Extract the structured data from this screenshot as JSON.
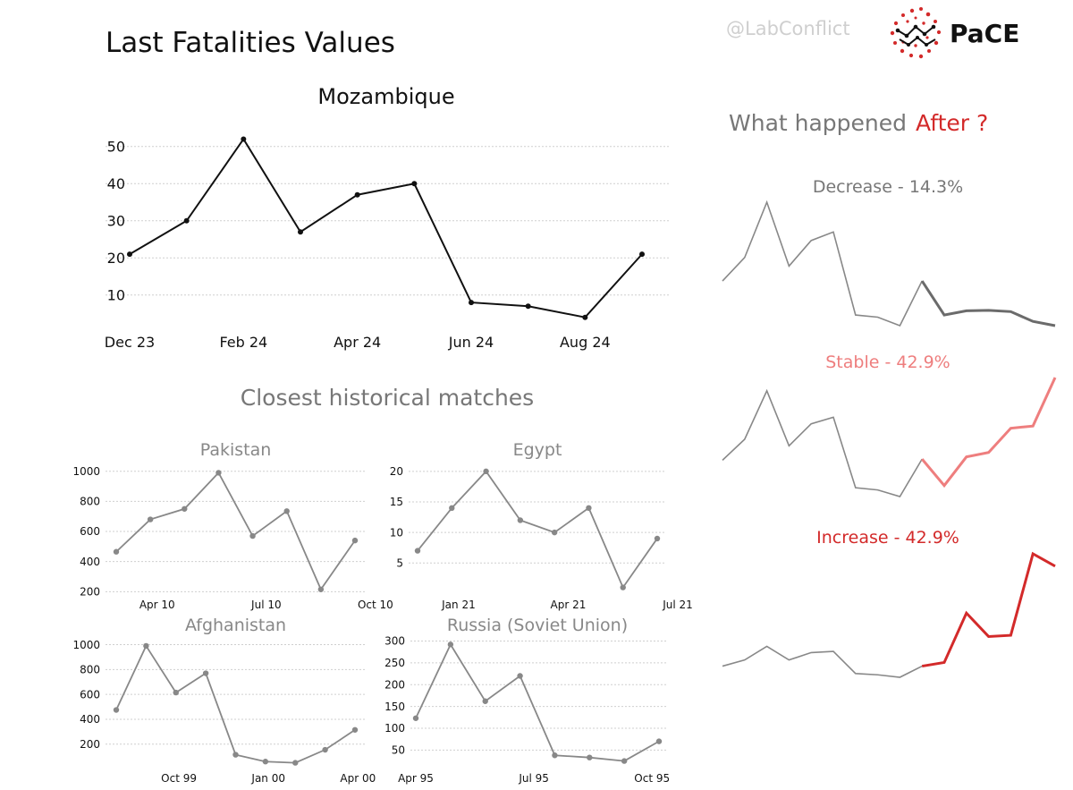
{
  "header": {
    "title": "Last Fatalities Values",
    "handle": "@LabConflict",
    "logo_text": "PaCE"
  },
  "after": {
    "title_prefix": "What happened",
    "title_highlight": "After ?"
  },
  "matches": {
    "title": "Closest historical matches"
  },
  "colors": {
    "accent_red": "#d32a2a",
    "light_red": "#ee7e7e",
    "grey": "#888888",
    "dark": "#111111"
  },
  "chart_data": [
    {
      "id": "main",
      "type": "line",
      "title": "Mozambique",
      "ylim": [
        2,
        55
      ],
      "yticks": [
        10,
        20,
        30,
        40,
        50
      ],
      "xticks": [
        {
          "x": 0,
          "label": "Dec 23"
        },
        {
          "x": 2,
          "label": "Feb 24"
        },
        {
          "x": 4,
          "label": "Apr 24"
        },
        {
          "x": 6,
          "label": "Jun 24"
        },
        {
          "x": 8,
          "label": "Aug 24"
        }
      ],
      "x": [
        0,
        1,
        2,
        3,
        4,
        5,
        6,
        7,
        8,
        9
      ],
      "values": [
        21,
        30,
        52,
        27,
        37,
        40,
        8,
        7,
        4,
        21
      ]
    },
    {
      "id": "pakistan",
      "type": "line",
      "title": "Pakistan",
      "ylim": [
        190,
        1040
      ],
      "yticks": [
        200,
        400,
        600,
        800,
        1000
      ],
      "xticks": [
        {
          "x": 1.2,
          "label": "Apr 10"
        },
        {
          "x": 4.4,
          "label": "Jul 10"
        },
        {
          "x": 7.6,
          "label": "Oct 10"
        }
      ],
      "x": [
        0,
        1,
        2,
        3,
        4,
        5,
        6,
        7
      ],
      "values": [
        465,
        680,
        750,
        990,
        570,
        735,
        215,
        540
      ]
    },
    {
      "id": "egypt",
      "type": "line",
      "title": "Egypt",
      "ylim": [
        0.5,
        21
      ],
      "yticks": [
        5,
        10,
        15,
        20
      ],
      "xticks": [
        {
          "x": 1.2,
          "label": "Jan 21"
        },
        {
          "x": 4.4,
          "label": "Apr 21"
        },
        {
          "x": 7.6,
          "label": "Jul 21"
        }
      ],
      "x": [
        0,
        1,
        2,
        3,
        4,
        5,
        6,
        7
      ],
      "values": [
        7,
        14,
        20,
        12,
        10,
        14,
        1,
        9
      ]
    },
    {
      "id": "afghanistan",
      "type": "line",
      "title": "Afghanistan",
      "ylim": [
        40,
        1040
      ],
      "yticks": [
        200,
        400,
        600,
        800,
        1000
      ],
      "xticks": [
        {
          "x": 2.1,
          "label": "Oct 99"
        },
        {
          "x": 5.1,
          "label": "Jan 00"
        },
        {
          "x": 8.1,
          "label": "Apr 00"
        }
      ],
      "x": [
        0,
        1,
        2,
        3,
        4,
        5,
        6,
        7,
        8
      ],
      "values": [
        475,
        990,
        615,
        770,
        115,
        60,
        50,
        155,
        315
      ]
    },
    {
      "id": "russia",
      "type": "line",
      "title": "Russia (Soviet Union)",
      "ylim": [
        18,
        305
      ],
      "yticks": [
        50,
        100,
        150,
        200,
        250,
        300
      ],
      "xticks": [
        {
          "x": 0,
          "label": "Apr 95"
        },
        {
          "x": 3.4,
          "label": "Jul 95"
        },
        {
          "x": 6.8,
          "label": "Oct 95"
        }
      ],
      "x": [
        0,
        1,
        2,
        3,
        4,
        5,
        6,
        7
      ],
      "values": [
        123,
        292,
        162,
        220,
        38,
        33,
        25,
        70
      ]
    },
    {
      "id": "decrease",
      "type": "line",
      "title": "Decrease - 14.3%",
      "split_index": 9,
      "values": [
        13.5,
        19,
        32,
        17,
        23,
        25,
        5.5,
        5,
        3,
        13.5,
        5.5,
        6.5,
        6.6,
        6.3,
        4,
        3
      ]
    },
    {
      "id": "stable",
      "type": "line",
      "title": "Stable - 42.9%",
      "split_index": 9,
      "values": [
        20.5,
        30,
        52,
        27,
        37,
        40,
        8,
        7,
        4,
        21,
        9,
        22,
        24,
        35,
        36,
        58
      ]
    },
    {
      "id": "increase",
      "type": "line",
      "title": "Increase - 42.9%",
      "split_index": 9,
      "values": [
        22,
        27,
        38,
        27,
        33,
        34,
        16,
        15,
        13,
        22,
        25,
        65,
        46,
        47,
        113,
        103
      ]
    }
  ]
}
